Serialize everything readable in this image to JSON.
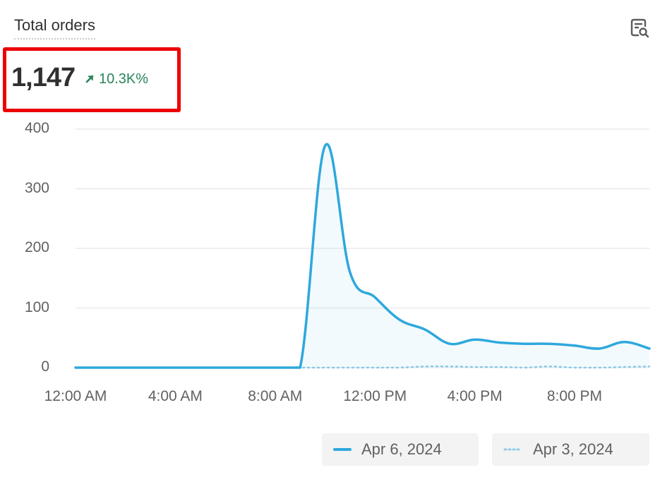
{
  "card": {
    "title": "Total orders",
    "metric_value": "1,147",
    "metric_change": "10.3K%",
    "explore_icon": "search-chart-icon"
  },
  "colors": {
    "primary_series": "#2ea8dc",
    "comparison_series": "#8dcbe6",
    "positive": "#29845a",
    "highlight_border": "#ee0000",
    "grid": "#ebebeb"
  },
  "chart_data": {
    "type": "line",
    "x": [
      "12:00 AM",
      "1:00 AM",
      "2:00 AM",
      "3:00 AM",
      "4:00 AM",
      "5:00 AM",
      "6:00 AM",
      "7:00 AM",
      "8:00 AM",
      "9:00 AM",
      "10:00 AM",
      "11:00 AM",
      "12:00 PM",
      "1:00 PM",
      "2:00 PM",
      "3:00 PM",
      "4:00 PM",
      "5:00 PM",
      "6:00 PM",
      "7:00 PM",
      "8:00 PM",
      "9:00 PM",
      "10:00 PM",
      "11:00 PM"
    ],
    "xticks": [
      "12:00 AM",
      "4:00 AM",
      "8:00 AM",
      "12:00 PM",
      "4:00 PM",
      "8:00 PM"
    ],
    "yticks": [
      "400",
      "300",
      "200",
      "100",
      "0"
    ],
    "ylim": [
      0,
      400
    ],
    "grid": true,
    "legend_position": "bottom-right",
    "series": [
      {
        "name": "Apr 6, 2024",
        "style": "solid",
        "values": [
          0,
          0,
          0,
          0,
          0,
          0,
          0,
          0,
          0,
          0,
          372,
          160,
          118,
          80,
          64,
          40,
          47,
          42,
          40,
          40,
          37,
          32,
          43,
          32
        ]
      },
      {
        "name": "Apr 3, 2024",
        "style": "dotted",
        "values": [
          0,
          0,
          0,
          0,
          0,
          0,
          0,
          0,
          0,
          0,
          0,
          0,
          0,
          0,
          2,
          2,
          1,
          1,
          0,
          2,
          0,
          0,
          1,
          2
        ]
      }
    ]
  }
}
